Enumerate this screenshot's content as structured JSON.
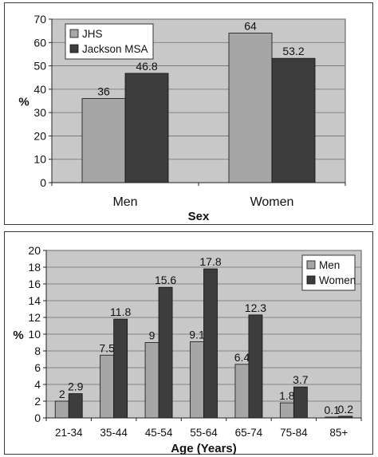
{
  "colors": {
    "plot_bg": "#c8c8c8",
    "series_light": "#a6a6a6",
    "series_dark": "#3d3d3d",
    "grid": "#6e6e6e"
  },
  "chart_data": [
    {
      "type": "bar",
      "categories": [
        "Men",
        "Women"
      ],
      "series": [
        {
          "name": "JHS",
          "values": [
            36,
            64
          ]
        },
        {
          "name": "Jackson MSA",
          "values": [
            46.8,
            53.2
          ]
        }
      ],
      "data_labels": [
        [
          "36",
          "64"
        ],
        [
          "46.8",
          "53.2"
        ]
      ],
      "xlabel": "Sex",
      "ylabel": "%",
      "ylim": [
        0,
        70
      ],
      "yticks": [
        "0",
        "10",
        "20",
        "30",
        "40",
        "50",
        "60",
        "70"
      ],
      "grid": true,
      "legend": "top-left"
    },
    {
      "type": "bar",
      "categories": [
        "21-34",
        "35-44",
        "45-54",
        "55-64",
        "65-74",
        "75-84",
        "85+"
      ],
      "series": [
        {
          "name": "Men",
          "values": [
            2,
            7.5,
            9,
            9.1,
            6.4,
            1.8,
            0.1
          ]
        },
        {
          "name": "Women",
          "values": [
            2.9,
            11.8,
            15.6,
            17.8,
            12.3,
            3.7,
            0.2
          ]
        }
      ],
      "data_labels": [
        [
          "2",
          "7.5",
          "9",
          "9.1",
          "6.4",
          "1.8",
          "0.1"
        ],
        [
          "2.9",
          "11.8",
          "15.6",
          "17.8",
          "12.3",
          "3.7",
          "0.2"
        ]
      ],
      "xlabel": "Age (Years)",
      "ylabel": "%",
      "ylim": [
        0,
        20
      ],
      "yticks": [
        "0",
        "2",
        "4",
        "6",
        "8",
        "10",
        "12",
        "14",
        "16",
        "18",
        "20"
      ],
      "grid": true,
      "legend": "top-right"
    }
  ]
}
